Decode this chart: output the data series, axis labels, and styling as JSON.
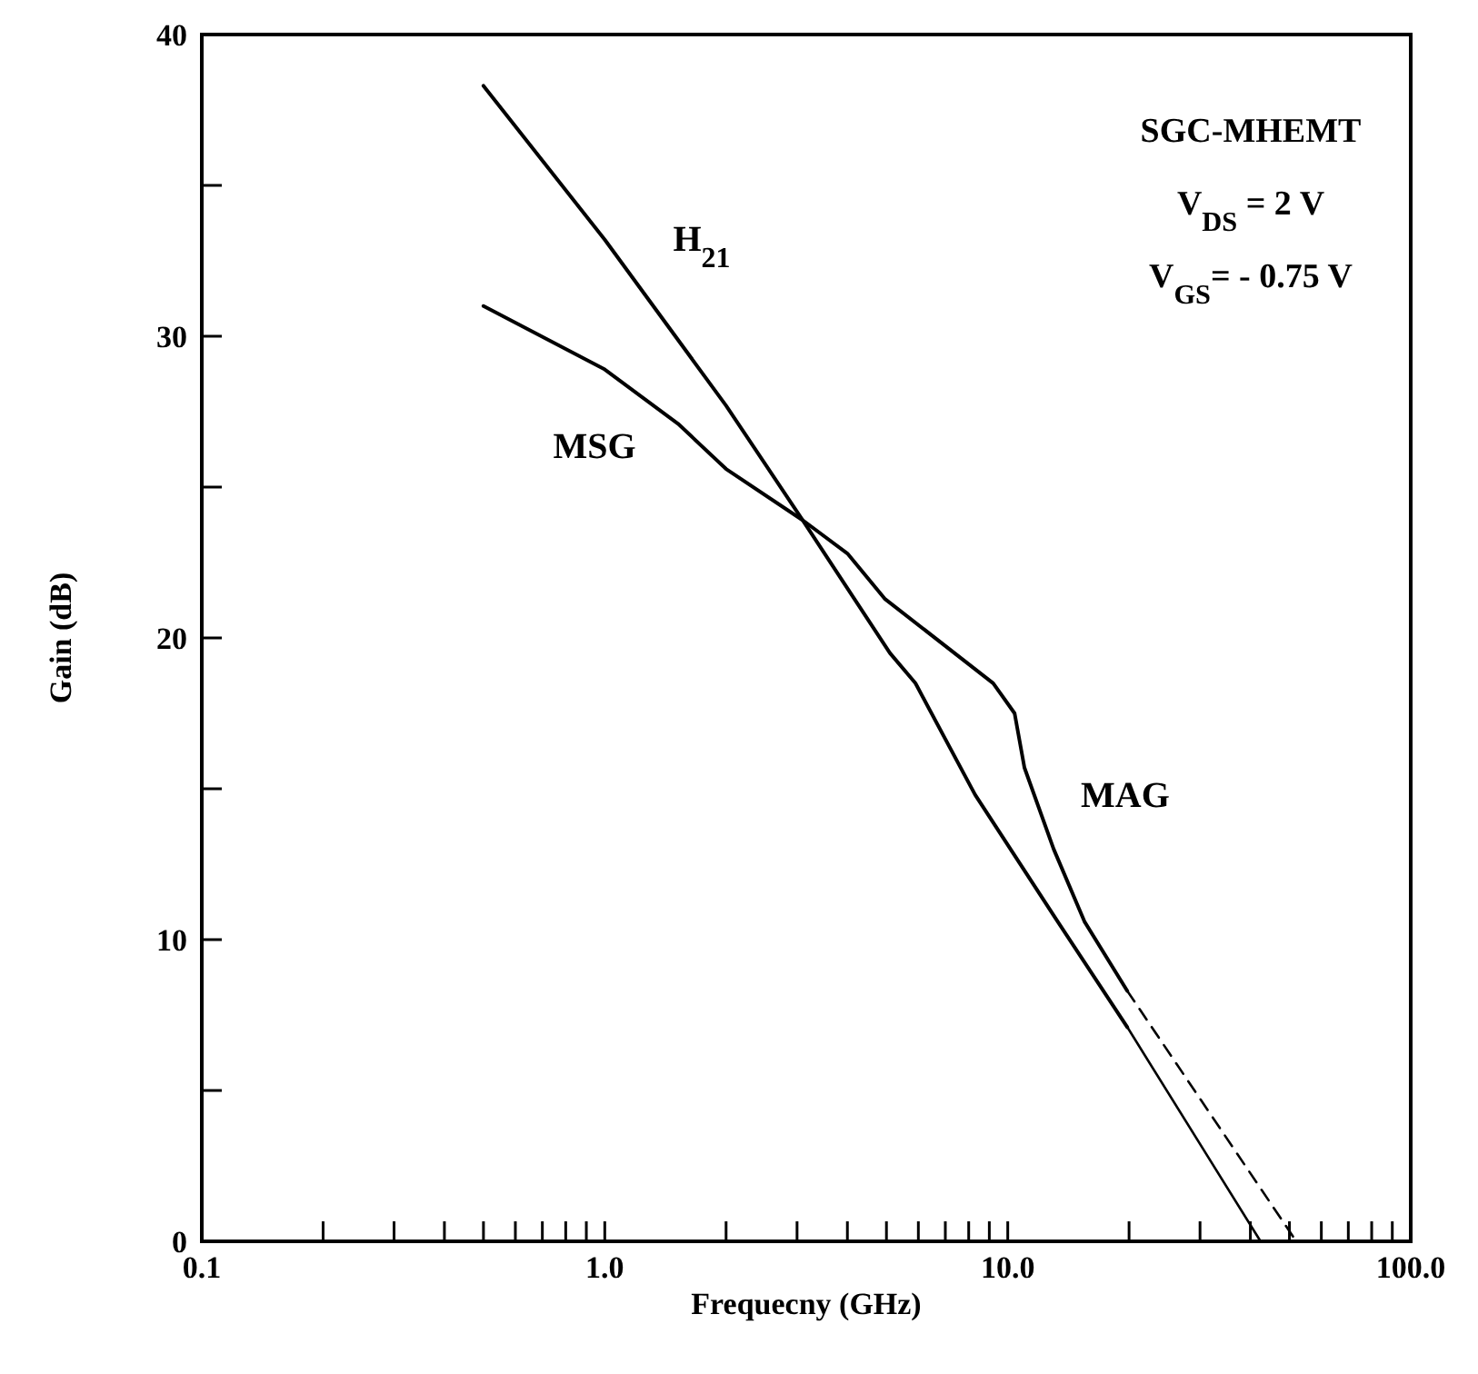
{
  "chart_data": {
    "type": "line",
    "xlabel": "Frequecny (GHz)",
    "ylabel": "Gain (dB)",
    "log": "x",
    "grid": false,
    "marker": "none",
    "xlim": [
      0.1,
      100
    ],
    "ylim": [
      0,
      40
    ],
    "xticks": [
      {
        "value": 0.1,
        "label": "0.1"
      },
      {
        "value": 0.2,
        "label": null
      },
      {
        "value": 0.3,
        "label": null
      },
      {
        "value": 0.4,
        "label": null
      },
      {
        "value": 0.5,
        "label": null
      },
      {
        "value": 0.6,
        "label": null
      },
      {
        "value": 0.7,
        "label": null
      },
      {
        "value": 0.8,
        "label": null
      },
      {
        "value": 0.9,
        "label": null
      },
      {
        "value": 1,
        "label": "1.0"
      },
      {
        "value": 2,
        "label": null
      },
      {
        "value": 3,
        "label": null
      },
      {
        "value": 4,
        "label": null
      },
      {
        "value": 5,
        "label": null
      },
      {
        "value": 6,
        "label": null
      },
      {
        "value": 7,
        "label": null
      },
      {
        "value": 8,
        "label": null
      },
      {
        "value": 9,
        "label": null
      },
      {
        "value": 10,
        "label": "10.0"
      },
      {
        "value": 20,
        "label": null
      },
      {
        "value": 30,
        "label": null
      },
      {
        "value": 40,
        "label": null
      },
      {
        "value": 50,
        "label": null
      },
      {
        "value": 60,
        "label": null
      },
      {
        "value": 70,
        "label": null
      },
      {
        "value": 80,
        "label": null
      },
      {
        "value": 90,
        "label": null
      },
      {
        "value": 100,
        "label": "100.0"
      }
    ],
    "yticks": [
      0,
      {
        "value": 5,
        "label": null
      },
      10,
      {
        "value": 15,
        "label": null
      },
      20,
      {
        "value": 25,
        "label": null
      },
      30,
      {
        "value": 35,
        "label": null
      },
      40
    ],
    "series": [
      {
        "color": "#000000",
        "line_style": "solid",
        "x": [
          0.5,
          1.0,
          2.0,
          3.1,
          5.1,
          5.9,
          8.3,
          13.0,
          19.8
        ],
        "values": [
          38.3,
          33.2,
          27.7,
          23.9,
          19.5,
          18.5,
          14.8,
          10.8,
          7.1
        ]
      },
      {
        "color": "#000000",
        "line_style": "solid",
        "x": [
          0.5,
          1.0,
          1.52,
          2.0,
          3.1,
          4.0,
          4.95,
          9.2,
          10.4,
          11.0,
          13.0,
          15.5,
          19.8
        ],
        "values": [
          31.0,
          28.9,
          27.1,
          25.6,
          23.9,
          22.8,
          21.3,
          18.5,
          17.5,
          15.7,
          13.0,
          10.6,
          8.3
        ]
      },
      {
        "type": "line",
        "color": "#000000",
        "line_style": "solid",
        "x": [
          19.8,
          42.4
        ],
        "values": [
          7.1,
          0
        ]
      },
      {
        "type": "line",
        "color": "#000000",
        "line_style": "dashed",
        "x": [
          19.8,
          52
        ],
        "values": [
          8.3,
          0
        ]
      }
    ],
    "annotations": [
      "H$_{21}$",
      "MSG",
      "MAG",
      "SGC-MHEMT",
      "V$_{DS}$ = 2 V",
      "V$_{GS}$= - 0.75 V"
    ]
  }
}
